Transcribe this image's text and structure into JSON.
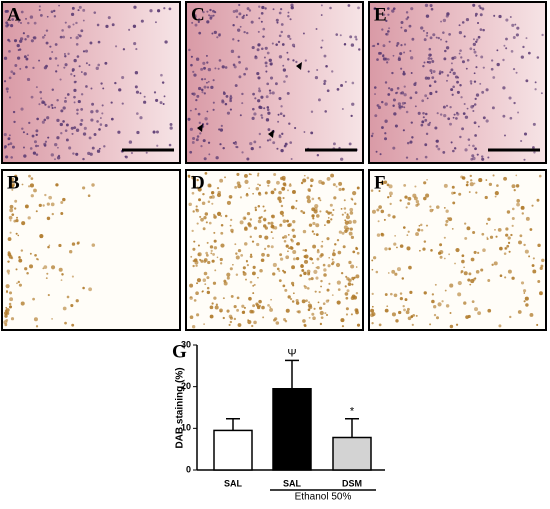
{
  "panels": [
    "A",
    "B",
    "C",
    "D",
    "E",
    "F"
  ],
  "chart_data": {
    "type": "bar",
    "panel_label": "G",
    "y_label": "DAB staining (%)",
    "categories": [
      "SAL",
      "SAL",
      "DSM"
    ],
    "values": [
      9.5,
      19.5,
      7.8
    ],
    "errors": [
      2.8,
      6.8,
      4.5
    ],
    "colors": [
      "#ffffff",
      "#000000",
      "#d3d3d3"
    ],
    "annotations": [
      null,
      "Ψ",
      "*"
    ],
    "group_label": "Ethanol 50%",
    "ylim": [
      0,
      30
    ],
    "yticks": [
      0,
      10,
      20,
      30
    ]
  }
}
